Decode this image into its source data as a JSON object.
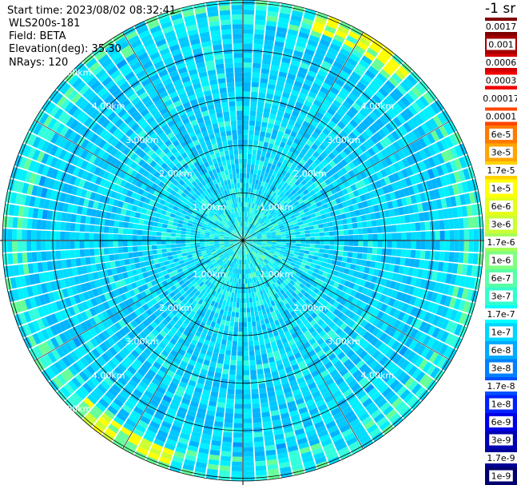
{
  "info": {
    "start_time": "Start time: 2023/08/02 08:32:41",
    "instrument": "WLS200s-181",
    "field": "Field: BETA",
    "elevation": "Elevation(deg): 35.30",
    "nrays": "NRays: 120"
  },
  "chart_data": {
    "type": "heatmap",
    "projection": "polar PPI",
    "instrument": "WLS200s-181",
    "field": "BETA",
    "elevation_deg": 35.3,
    "n_rays": 120,
    "range_rings": [
      "1.00km",
      "2.00km",
      "3.00km",
      "4.00km",
      "5.00km"
    ],
    "colorbar_unit": "-1 sr",
    "colorbar": [
      {
        "label": "0.0017",
        "color": "#800000"
      },
      {
        "label": "0.001",
        "color": "#a50000"
      },
      {
        "label": "0.0006",
        "color": "#d00000"
      },
      {
        "label": "0.0003",
        "color": "#f20000"
      },
      {
        "label": "0.00017",
        "color": "#ffffff"
      },
      {
        "label": "0.0001",
        "color": "#ff4500"
      },
      {
        "label": "6e-5",
        "color": "#ff7a00"
      },
      {
        "label": "3e-5",
        "color": "#ffa500"
      },
      {
        "label": "1.7e-5",
        "color": "#ffd200"
      },
      {
        "label": "1e-5",
        "color": "#ffff00"
      },
      {
        "label": "6e-6",
        "color": "#e5ff1a"
      },
      {
        "label": "3e-6",
        "color": "#ccff33"
      },
      {
        "label": "1.7e-6",
        "color": "#a6ff59"
      },
      {
        "label": "1e-6",
        "color": "#7fff80"
      },
      {
        "label": "6e-7",
        "color": "#59ffa6"
      },
      {
        "label": "3e-7",
        "color": "#33ffcc"
      },
      {
        "label": "1.7e-7",
        "color": "#00ffff"
      },
      {
        "label": "1e-7",
        "color": "#00d5ff"
      },
      {
        "label": "6e-8",
        "color": "#00aaff"
      },
      {
        "label": "3e-8",
        "color": "#0080ff"
      },
      {
        "label": "1.7e-8",
        "color": "#0050ff"
      },
      {
        "label": "1e-8",
        "color": "#0020ff"
      },
      {
        "label": "6e-9",
        "color": "#0000e6"
      },
      {
        "label": "3e-9",
        "color": "#0000b4"
      },
      {
        "label": "1.7e-9",
        "color": "#000096"
      },
      {
        "label": "1e-9",
        "color": "#00006e"
      }
    ],
    "palette": [
      "#0050ff",
      "#0078ff",
      "#0096ff",
      "#00b4ff",
      "#00c8ff",
      "#00dcff",
      "#00f0ff",
      "#33ffdd",
      "#66ff99",
      "#ccff33",
      "#ffff00"
    ]
  }
}
